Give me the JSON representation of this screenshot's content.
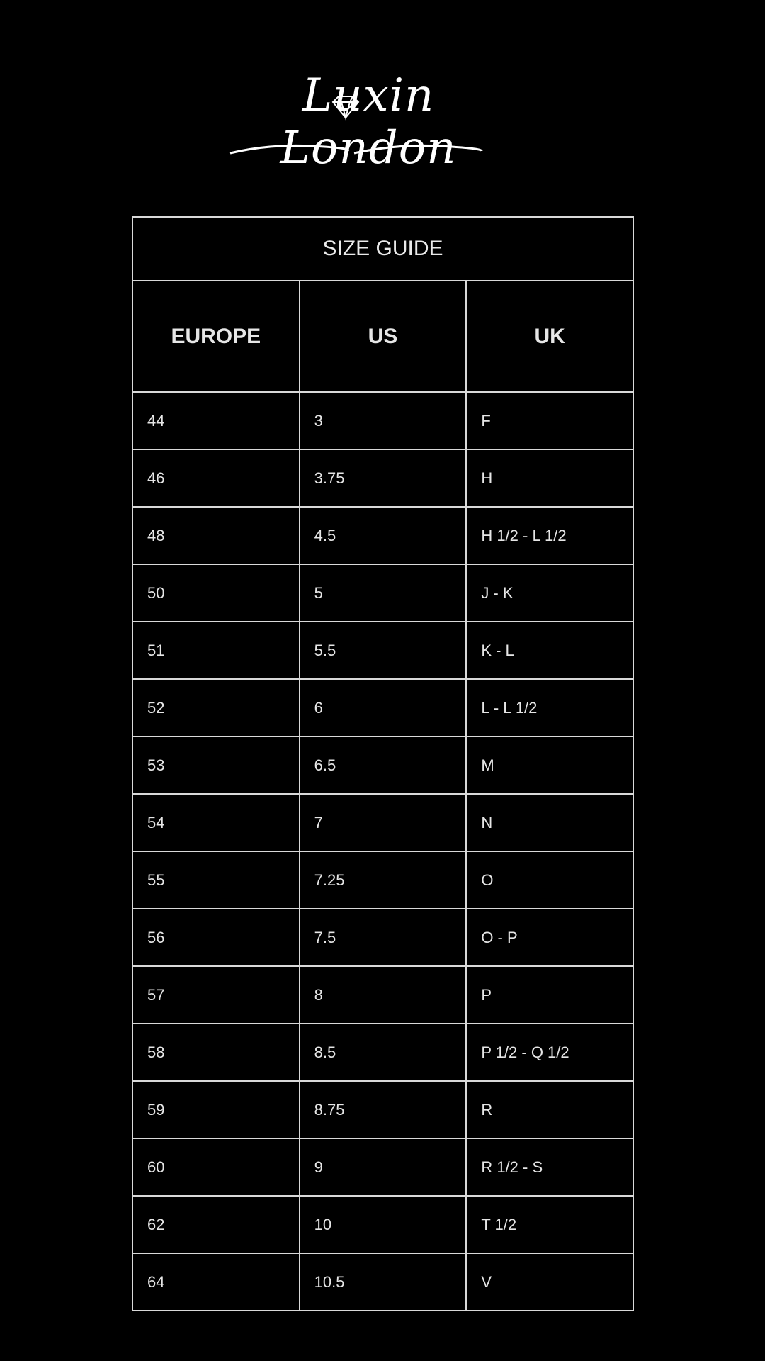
{
  "logo": {
    "text": "Luxin London",
    "icon": "diamond-icon"
  },
  "table": {
    "title": "SIZE GUIDE",
    "headers": [
      "EUROPE",
      "US",
      "UK"
    ],
    "rows": [
      [
        "44",
        "3",
        "F"
      ],
      [
        "46",
        "3.75",
        "H"
      ],
      [
        "48",
        "4.5",
        "H 1/2 - L 1/2"
      ],
      [
        "50",
        "5",
        "J - K"
      ],
      [
        "51",
        "5.5",
        "K - L"
      ],
      [
        "52",
        "6",
        "L - L 1/2"
      ],
      [
        "53",
        "6.5",
        "M"
      ],
      [
        "54",
        "7",
        "N"
      ],
      [
        "55",
        "7.25",
        "O"
      ],
      [
        "56",
        "7.5",
        "O - P"
      ],
      [
        "57",
        "8",
        "P"
      ],
      [
        "58",
        "8.5",
        "P 1/2 - Q 1/2"
      ],
      [
        "59",
        "8.75",
        "R"
      ],
      [
        "60",
        "9",
        "R 1/2 - S"
      ],
      [
        "62",
        "10",
        "T 1/2"
      ],
      [
        "64",
        "10.5",
        "V"
      ]
    ]
  }
}
